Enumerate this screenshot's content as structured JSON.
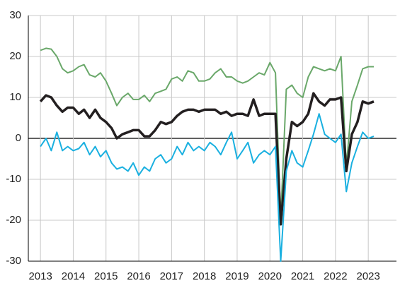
{
  "chart_data": {
    "type": "line",
    "x": [
      2013,
      2013.17,
      2013.33,
      2013.5,
      2013.67,
      2013.83,
      2014,
      2014.17,
      2014.33,
      2014.5,
      2014.67,
      2014.83,
      2015,
      2015.17,
      2015.33,
      2015.5,
      2015.67,
      2015.83,
      2016,
      2016.17,
      2016.33,
      2016.5,
      2016.67,
      2016.83,
      2017,
      2017.17,
      2017.33,
      2017.5,
      2017.67,
      2017.83,
      2018,
      2018.17,
      2018.33,
      2018.5,
      2018.67,
      2018.83,
      2019,
      2019.17,
      2019.33,
      2019.5,
      2019.67,
      2019.83,
      2020,
      2020.17,
      2020.33,
      2020.5,
      2020.67,
      2020.83,
      2021,
      2021.17,
      2021.33,
      2021.5,
      2021.67,
      2021.83,
      2022,
      2022.17,
      2022.33,
      2022.5,
      2022.67,
      2022.83,
      2023,
      2023.17
    ],
    "series": [
      {
        "color": "#6aa86a",
        "values": [
          21.5,
          22,
          21.8,
          20,
          17,
          16,
          16.5,
          17.5,
          18,
          15.5,
          15,
          16,
          14,
          11,
          8,
          10,
          11,
          9.5,
          9.5,
          10.5,
          9,
          11,
          11.5,
          12,
          14.5,
          15,
          14,
          16.5,
          16,
          14,
          14,
          14.5,
          16,
          17,
          15,
          15,
          14,
          13.5,
          14,
          15,
          16,
          15.5,
          18.5,
          16,
          -20,
          12,
          13,
          11,
          10,
          15,
          17.5,
          17,
          16.5,
          17,
          16.5,
          20,
          -7,
          9,
          13,
          17,
          17.5,
          17.5
        ]
      },
      {
        "color": "#231f20",
        "values": [
          9,
          10.5,
          10,
          8,
          6.5,
          7.5,
          7.5,
          6,
          7,
          5,
          7,
          5,
          4,
          2.5,
          0,
          1,
          1.5,
          2,
          2,
          0.5,
          0.5,
          2,
          4,
          3.5,
          4,
          5.5,
          6.5,
          7,
          7,
          6.5,
          7,
          7,
          7,
          6,
          6.5,
          5.5,
          6,
          6,
          5.5,
          9.5,
          5.5,
          6,
          6,
          6,
          -21,
          -5,
          4,
          3,
          4,
          6,
          11,
          9,
          8,
          9.5,
          9.5,
          10,
          -8,
          1,
          4,
          9,
          8.5,
          9
        ]
      },
      {
        "color": "#1ab0e0",
        "values": [
          -2,
          0,
          -3,
          1.5,
          -3,
          -2,
          -3,
          -2.5,
          -1,
          -4,
          -2,
          -4.5,
          -3,
          -6,
          -7.5,
          -7,
          -8,
          -6,
          -9,
          -7,
          -8,
          -5,
          -4,
          -6,
          -5,
          -2,
          -4,
          -1,
          -3,
          -2,
          -3,
          -1,
          -2,
          -4,
          -1,
          1.5,
          -5,
          -3,
          -1,
          -6,
          -4,
          -3,
          -4,
          -2,
          -30,
          -8,
          -3,
          -6,
          -7,
          -3,
          1,
          6,
          1,
          0,
          -1,
          1,
          -13,
          -6,
          -2,
          1.5,
          0,
          0.5
        ]
      }
    ],
    "xlim": [
      2012.63,
      2023.86
    ],
    "xticks": [
      2013,
      2014,
      2015,
      2016,
      2017,
      2018,
      2019,
      2020,
      2021,
      2022,
      2023
    ],
    "ylim": [
      -30,
      30
    ],
    "yticks": [
      -30,
      -20,
      -10,
      0,
      10,
      20,
      30
    ],
    "grid": true
  }
}
